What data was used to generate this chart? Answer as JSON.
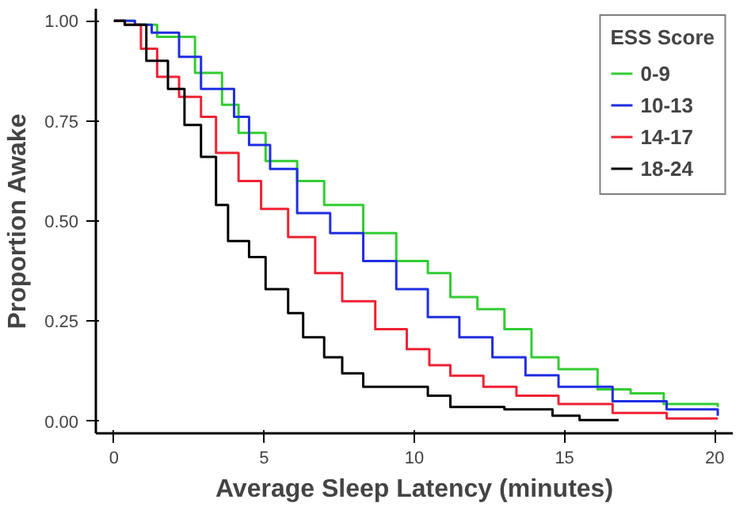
{
  "chart_data": {
    "type": "step",
    "xlabel": "Average Sleep Latency (minutes)",
    "ylabel": "Proportion Awake",
    "legend_title": "ESS Score",
    "legend": "top right",
    "grid": false,
    "xlim": [
      -0.6,
      20.6
    ],
    "ylim": [
      -0.03,
      1.03
    ],
    "xticks": [
      0,
      5,
      10,
      15,
      20
    ],
    "yticks": [
      {
        "value": 0,
        "label": "0.00"
      },
      {
        "value": 0.25,
        "label": "0.25"
      },
      {
        "value": 0.5,
        "label": "0.50"
      },
      {
        "value": 0.75,
        "label": "0.75"
      },
      {
        "value": 1,
        "label": "1.00"
      }
    ],
    "series": [
      {
        "name": "0-9",
        "color": "#33cc33",
        "x": [
          0,
          0.7,
          1.44,
          2.7,
          3.6,
          4.15,
          5.05,
          6.1,
          7.0,
          8.3,
          9.4,
          10.45,
          11.2,
          12.1,
          13.0,
          13.9,
          14.8,
          16.1,
          17.2,
          18.3,
          20.1
        ],
        "values": [
          1,
          0.99,
          0.96,
          0.87,
          0.79,
          0.72,
          0.65,
          0.6,
          0.54,
          0.47,
          0.4,
          0.37,
          0.31,
          0.28,
          0.23,
          0.16,
          0.13,
          0.08,
          0.07,
          0.043,
          0.036
        ]
      },
      {
        "name": "10-13",
        "color": "#1f2ee0",
        "x": [
          0,
          0.7,
          1.26,
          2.17,
          2.9,
          4.0,
          4.5,
          5.2,
          6.1,
          7.2,
          8.3,
          9.4,
          10.45,
          11.5,
          12.6,
          13.7,
          14.8,
          16.6,
          18.4,
          20.1
        ],
        "values": [
          1,
          0.99,
          0.97,
          0.91,
          0.83,
          0.76,
          0.69,
          0.63,
          0.52,
          0.47,
          0.4,
          0.33,
          0.26,
          0.21,
          0.16,
          0.115,
          0.086,
          0.05,
          0.03,
          0.014
        ]
      },
      {
        "name": "14-17",
        "color": "#ee2233",
        "x": [
          0,
          0.36,
          0.9,
          1.44,
          2.17,
          2.9,
          3.4,
          4.15,
          4.9,
          5.8,
          6.7,
          7.6,
          8.7,
          9.75,
          10.5,
          11.2,
          12.3,
          13.4,
          14.8,
          16.6,
          18.4,
          20.1
        ],
        "values": [
          1,
          0.99,
          0.93,
          0.86,
          0.81,
          0.76,
          0.67,
          0.6,
          0.53,
          0.46,
          0.37,
          0.3,
          0.23,
          0.18,
          0.14,
          0.114,
          0.086,
          0.064,
          0.043,
          0.021,
          0.007,
          0.007
        ]
      },
      {
        "name": "18-24",
        "color": "#000000",
        "x": [
          0,
          0.36,
          1.08,
          1.8,
          2.35,
          2.9,
          3.4,
          3.8,
          4.5,
          5.05,
          5.8,
          6.3,
          7.0,
          7.6,
          8.3,
          9.4,
          10.45,
          11.2,
          13.0,
          14.6,
          15.5,
          16.8
        ],
        "values": [
          1,
          0.99,
          0.9,
          0.83,
          0.74,
          0.66,
          0.54,
          0.45,
          0.41,
          0.33,
          0.27,
          0.21,
          0.16,
          0.12,
          0.086,
          0.086,
          0.064,
          0.036,
          0.03,
          0.014,
          0.003,
          0.003
        ]
      }
    ]
  }
}
